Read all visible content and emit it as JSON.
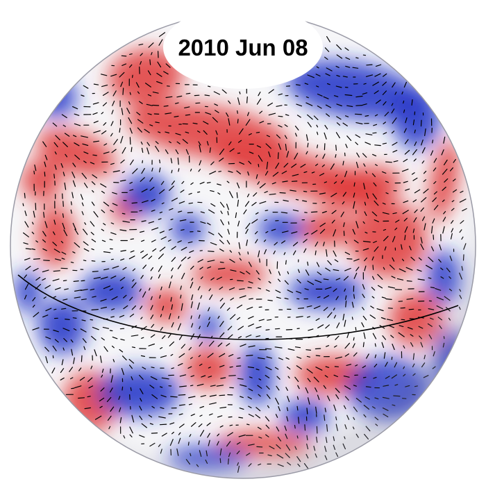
{
  "figure": {
    "date_label": "2010 Jun 08",
    "colors": {
      "positive": "#e03838",
      "negative": "#2234c8",
      "neutral": "#f6f6f8",
      "vectors": "#000000",
      "outline": "#9a9aa6"
    }
  }
}
